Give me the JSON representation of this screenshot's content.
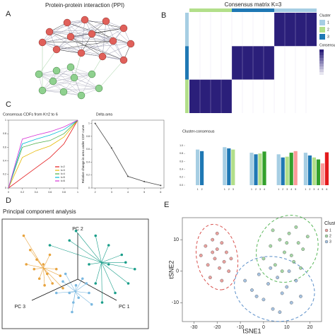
{
  "labels": [
    "A",
    "B",
    "C",
    "D",
    "E"
  ],
  "ppi": {
    "title": "Protein-protein interaction (PPI)"
  },
  "chart_data": [
    {
      "type": "heatmap",
      "title": "Consensus matrix K=3",
      "z": [
        [
          0,
          0,
          1
        ],
        [
          0,
          1,
          0
        ],
        [
          1,
          0,
          0
        ]
      ],
      "row_clusters": [
        1,
        3,
        2
      ],
      "col_clusters": [
        2,
        3,
        1
      ],
      "legend_title": "Cluster",
      "cluster_names": [
        "1",
        "2",
        "3"
      ],
      "cluster_colors": [
        "#a6cee3",
        "#b2df8a",
        "#1f78b4"
      ],
      "colorbar_title": "Consensus",
      "colorscale": [
        "#ffffff",
        "#2b1f7a"
      ],
      "zlim": [
        0,
        1
      ]
    },
    {
      "type": "line",
      "title": "Consensus CDFs from K=2 to 6",
      "x": [
        0,
        0.2,
        0.4,
        0.6,
        0.8,
        1
      ],
      "series": [
        {
          "name": "k=2",
          "color": "#e41a1c",
          "values": [
            0,
            0.15,
            0.3,
            0.45,
            0.65,
            1
          ]
        },
        {
          "name": "k=3",
          "color": "#e6b800",
          "values": [
            0,
            0.45,
            0.55,
            0.62,
            0.75,
            1
          ]
        },
        {
          "name": "k=4",
          "color": "#4daf4a",
          "values": [
            0,
            0.6,
            0.66,
            0.7,
            0.8,
            1
          ]
        },
        {
          "name": "k=5",
          "color": "#00bcd4",
          "values": [
            0,
            0.65,
            0.72,
            0.78,
            0.86,
            1
          ]
        },
        {
          "name": "k=6",
          "color": "#d633d6",
          "values": [
            0,
            0.72,
            0.78,
            0.83,
            0.9,
            1
          ]
        }
      ],
      "xlim": [
        0,
        1
      ],
      "ylim": [
        0,
        1
      ],
      "xticks": [
        0,
        0.2,
        0.4,
        0.6,
        0.8,
        1
      ],
      "yticks": [
        0,
        0.2,
        0.4,
        0.6,
        0.8,
        1
      ]
    },
    {
      "type": "line",
      "title": "Delta area",
      "y_label": "Relative change in area under CDF curve",
      "x": [
        2,
        3,
        4,
        5,
        6
      ],
      "series": [
        {
          "color": "#444444",
          "values": [
            1,
            0.62,
            0.18,
            0.1,
            0.04
          ]
        }
      ],
      "xlim": [
        1.8,
        6.2
      ],
      "ylim": [
        0,
        1.05
      ],
      "xticks": [
        2,
        3,
        4,
        5,
        6
      ],
      "yticks": [
        0,
        0.2,
        0.4,
        0.6,
        0.8,
        1
      ]
    },
    {
      "type": "bar",
      "title": "Cluster-consensus",
      "categories": [
        null,
        null,
        null,
        null,
        null
      ],
      "series": [
        {
          "name": "1",
          "color": "#a6cee3",
          "values": [
            0.9,
            0.96,
            0.82,
            0.78,
            0.82
          ]
        },
        {
          "name": "2",
          "color": "#1f78b4",
          "values": [
            0.86,
            0.93,
            0.78,
            0.7,
            0.75
          ]
        },
        {
          "name": "3",
          "color": "#b2df8a",
          "values": [
            null,
            0.9,
            0.8,
            0.72,
            0.7
          ]
        },
        {
          "name": "4",
          "color": "#33a02c",
          "values": [
            null,
            null,
            0.85,
            0.82,
            0.65
          ]
        },
        {
          "name": "5",
          "color": "#fb9a99",
          "values": [
            null,
            null,
            null,
            0.86,
            0.55
          ]
        },
        {
          "name": "6",
          "color": "#e31a1c",
          "values": [
            null,
            null,
            null,
            null,
            0.83
          ]
        }
      ],
      "ylim": [
        0,
        1
      ],
      "yticks": [
        {
          "value": 0,
          "label": "0.0"
        },
        0.2,
        0.4,
        0.6,
        0.8,
        {
          "value": 1,
          "label": "1.0"
        }
      ]
    },
    {
      "type": "scatter",
      "title": "Principal component analysis",
      "axis_labels": [
        "PC 1",
        "PC 2",
        "PC 3"
      ],
      "xlim": [
        0,
        100
      ],
      "ylim": [
        0,
        100
      ],
      "series": [
        {
          "color": "#e8a33d",
          "x": [
            10,
            15,
            20,
            25,
            28,
            22,
            32,
            35,
            18,
            30,
            38,
            26,
            12,
            40
          ],
          "values": [
            90,
            75,
            65,
            60,
            50,
            45,
            40,
            55,
            55,
            70,
            48,
            38,
            60,
            35
          ]
        },
        {
          "color": "#7ab8e0",
          "x": [
            40,
            45,
            50,
            55,
            48,
            60,
            42,
            52,
            35,
            58,
            47,
            62
          ],
          "values": [
            42,
            30,
            38,
            45,
            20,
            30,
            50,
            25,
            30,
            40,
            10,
            18
          ]
        },
        {
          "color": "#1a9e8a",
          "x": [
            50,
            65,
            75,
            85,
            95,
            90,
            80,
            70,
            60,
            45,
            30,
            75,
            88,
            65
          ],
          "values": [
            95,
            90,
            80,
            70,
            55,
            40,
            30,
            20,
            60,
            85,
            80,
            60,
            62,
            40
          ]
        }
      ]
    },
    {
      "type": "scatter",
      "x_label": "tSNE1",
      "y_label": "tSNE2",
      "legend_title": "Cluster",
      "xlim": [
        -35,
        25
      ],
      "ylim": [
        -16,
        17
      ],
      "xticks": [
        -30,
        -20,
        -10,
        0,
        10,
        20
      ],
      "yticks": [
        -10,
        0,
        10
      ],
      "series": [
        {
          "name": "1",
          "color": "#d9534f",
          "x": [
            -27,
            -25,
            -24,
            -22,
            -21,
            -20,
            -19,
            -18,
            -17,
            -16,
            -15,
            -23,
            -20,
            -14,
            -18,
            -22
          ],
          "values": [
            5,
            8,
            2,
            10,
            4,
            7,
            1,
            9,
            3,
            6,
            0,
            -2,
            12,
            4,
            -3,
            6
          ]
        },
        {
          "name": "2",
          "color": "#5cb85c",
          "x": [
            0,
            3,
            5,
            7,
            9,
            11,
            13,
            15,
            17,
            19,
            8,
            12,
            4,
            16,
            10,
            14
          ],
          "values": [
            4,
            8,
            2,
            10,
            6,
            12,
            3,
            9,
            7,
            11,
            0,
            5,
            13,
            1,
            9,
            14
          ]
        },
        {
          "name": "3",
          "color": "#5b8fc9",
          "x": [
            -8,
            -5,
            -2,
            0,
            2,
            4,
            6,
            8,
            10,
            12,
            14,
            16,
            3,
            7,
            -3,
            11
          ],
          "values": [
            -3,
            -6,
            -1,
            -9,
            -4,
            -12,
            -2,
            -7,
            -5,
            -10,
            -3,
            -8,
            1,
            -13,
            -8,
            0
          ]
        }
      ]
    }
  ]
}
